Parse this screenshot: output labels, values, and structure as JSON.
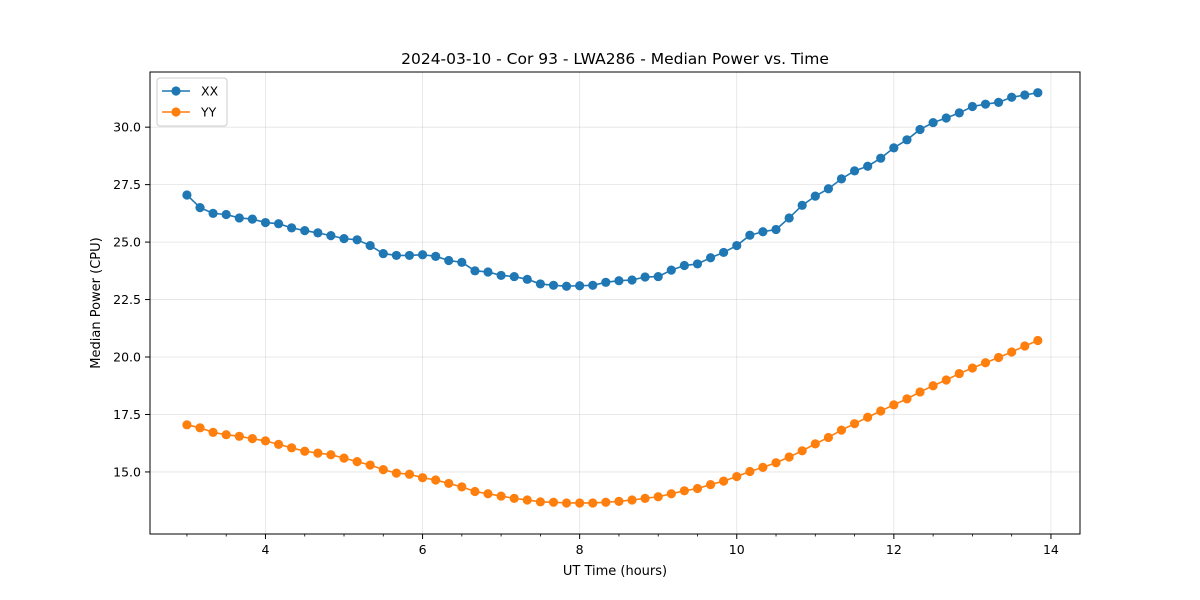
{
  "chart_data": {
    "type": "line",
    "title": "2024-03-10 - Cor 93 - LWA286 - Median Power vs. Time",
    "xlabel": "UT Time (hours)",
    "ylabel": "Median Power (CPU)",
    "xlim": [
      2.53,
      14.37
    ],
    "ylim": [
      12.3,
      32.4
    ],
    "xticks": [
      4,
      6,
      8,
      10,
      12,
      14
    ],
    "xtick_labels": [
      "4",
      "6",
      "8",
      "10",
      "12",
      "14"
    ],
    "yticks": [
      15.0,
      17.5,
      20.0,
      22.5,
      25.0,
      27.5,
      30.0
    ],
    "ytick_labels": [
      "15.0",
      "17.5",
      "20.0",
      "22.5",
      "25.0",
      "27.5",
      "30.0"
    ],
    "grid": true,
    "legend_position": "top-left",
    "series": [
      {
        "name": "XX",
        "color": "#1f77b4",
        "x": [
          3.0,
          3.167,
          3.333,
          3.5,
          3.667,
          3.833,
          4.0,
          4.167,
          4.333,
          4.5,
          4.667,
          4.833,
          5.0,
          5.167,
          5.333,
          5.5,
          5.667,
          5.833,
          6.0,
          6.167,
          6.333,
          6.5,
          6.667,
          6.833,
          7.0,
          7.167,
          7.333,
          7.5,
          7.667,
          7.833,
          8.0,
          8.167,
          8.333,
          8.5,
          8.667,
          8.833,
          9.0,
          9.167,
          9.333,
          9.5,
          9.667,
          9.833,
          10.0,
          10.167,
          10.333,
          10.5,
          10.667,
          10.833,
          11.0,
          11.167,
          11.333,
          11.5,
          11.667,
          11.833,
          12.0,
          12.167,
          12.333,
          12.5,
          12.667,
          12.833,
          13.0,
          13.167,
          13.333,
          13.5,
          13.667,
          13.833
        ],
        "values": [
          27.05,
          26.5,
          26.25,
          26.2,
          26.05,
          26.0,
          25.85,
          25.8,
          25.62,
          25.5,
          25.4,
          25.28,
          25.15,
          25.1,
          24.85,
          24.5,
          24.42,
          24.42,
          24.45,
          24.38,
          24.2,
          24.12,
          23.75,
          23.7,
          23.55,
          23.5,
          23.38,
          23.18,
          23.12,
          23.08,
          23.1,
          23.12,
          23.25,
          23.32,
          23.35,
          23.48,
          23.5,
          23.78,
          23.98,
          24.05,
          24.32,
          24.55,
          24.85,
          25.3,
          25.45,
          25.55,
          26.05,
          26.6,
          27.0,
          27.32,
          27.75,
          28.1,
          28.3,
          28.65,
          29.1,
          29.45,
          29.9,
          30.2,
          30.4,
          30.62,
          30.9,
          31.0,
          31.08,
          31.3,
          31.4,
          31.5
        ]
      },
      {
        "name": "YY",
        "color": "#ff7f0e",
        "x": [
          3.0,
          3.167,
          3.333,
          3.5,
          3.667,
          3.833,
          4.0,
          4.167,
          4.333,
          4.5,
          4.667,
          4.833,
          5.0,
          5.167,
          5.333,
          5.5,
          5.667,
          5.833,
          6.0,
          6.167,
          6.333,
          6.5,
          6.667,
          6.833,
          7.0,
          7.167,
          7.333,
          7.5,
          7.667,
          7.833,
          8.0,
          8.167,
          8.333,
          8.5,
          8.667,
          8.833,
          9.0,
          9.167,
          9.333,
          9.5,
          9.667,
          9.833,
          10.0,
          10.167,
          10.333,
          10.5,
          10.667,
          10.833,
          11.0,
          11.167,
          11.333,
          11.5,
          11.667,
          11.833,
          12.0,
          12.167,
          12.333,
          12.5,
          12.667,
          12.833,
          13.0,
          13.167,
          13.333,
          13.5,
          13.667,
          13.833
        ],
        "values": [
          17.05,
          16.92,
          16.72,
          16.62,
          16.55,
          16.45,
          16.35,
          16.2,
          16.05,
          15.9,
          15.82,
          15.75,
          15.6,
          15.45,
          15.3,
          15.1,
          14.95,
          14.9,
          14.75,
          14.65,
          14.5,
          14.35,
          14.15,
          14.05,
          13.95,
          13.85,
          13.78,
          13.7,
          13.68,
          13.65,
          13.65,
          13.65,
          13.68,
          13.72,
          13.78,
          13.85,
          13.92,
          14.05,
          14.18,
          14.28,
          14.45,
          14.6,
          14.8,
          15.02,
          15.2,
          15.4,
          15.65,
          15.92,
          16.22,
          16.5,
          16.82,
          17.1,
          17.38,
          17.65,
          17.92,
          18.18,
          18.48,
          18.75,
          19.0,
          19.28,
          19.52,
          19.75,
          19.98,
          20.22,
          20.48,
          20.72
        ]
      }
    ]
  }
}
